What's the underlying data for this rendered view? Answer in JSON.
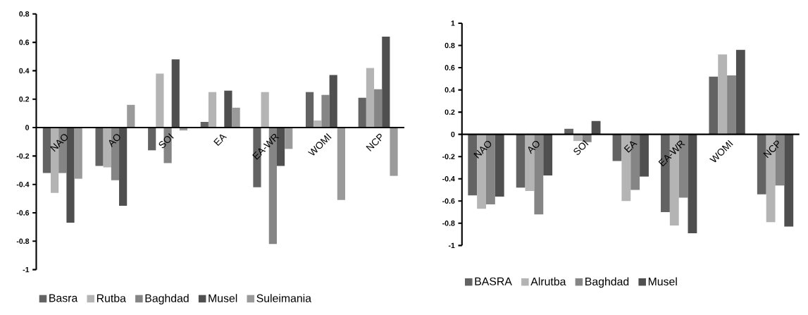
{
  "chart_data": [
    {
      "type": "bar",
      "categories": [
        "NAO",
        "AO",
        "SOI",
        "EA",
        "EA-WR",
        "WOMI",
        "NCP"
      ],
      "ylim": [
        -1,
        0.8
      ],
      "yticks": [
        -1,
        -0.8,
        -0.6,
        -0.4,
        -0.2,
        0,
        0.2,
        0.4,
        0.6,
        0.8
      ],
      "legend": "bottom",
      "grid": false,
      "series": [
        {
          "name": "Basra",
          "color": "#636363",
          "values": [
            -0.32,
            -0.27,
            -0.16,
            0.04,
            -0.42,
            0.25,
            0.21
          ]
        },
        {
          "name": "Rutba",
          "color": "#b4b4b4",
          "values": [
            -0.46,
            -0.28,
            0.38,
            0.25,
            0.25,
            0.05,
            0.42
          ]
        },
        {
          "name": "Baghdad",
          "color": "#858585",
          "values": [
            -0.32,
            -0.37,
            -0.25,
            null,
            -0.82,
            0.23,
            0.27
          ]
        },
        {
          "name": "Musel",
          "color": "#4f4f4f",
          "values": [
            -0.67,
            -0.55,
            0.48,
            0.26,
            -0.27,
            0.37,
            0.64
          ]
        },
        {
          "name": "Suleimania",
          "color": "#9a9a9a",
          "values": [
            -0.36,
            0.16,
            -0.02,
            0.14,
            -0.15,
            -0.51,
            -0.34
          ]
        }
      ]
    },
    {
      "type": "bar",
      "categories": [
        "NAO",
        "AO",
        "SOI",
        "EA",
        "EA-WR",
        "WOMI",
        "NCP"
      ],
      "ylim": [
        -1,
        1
      ],
      "yticks": [
        -1,
        -0.8,
        -0.6,
        -0.4,
        -0.2,
        0,
        0.2,
        0.4,
        0.6,
        0.8,
        1
      ],
      "legend": "bottom",
      "grid": false,
      "series": [
        {
          "name": "BASRA",
          "color": "#636363",
          "values": [
            -0.55,
            -0.48,
            0.05,
            -0.24,
            -0.7,
            0.52,
            -0.54
          ]
        },
        {
          "name": "Alrutba",
          "color": "#b4b4b4",
          "values": [
            -0.67,
            -0.51,
            -0.06,
            -0.6,
            -0.82,
            0.72,
            -0.79
          ]
        },
        {
          "name": "Baghdad",
          "color": "#858585",
          "values": [
            -0.63,
            -0.72,
            -0.07,
            -0.5,
            -0.57,
            0.53,
            -0.46
          ]
        },
        {
          "name": "Musel",
          "color": "#4f4f4f",
          "values": [
            -0.56,
            -0.37,
            0.12,
            -0.38,
            -0.89,
            0.76,
            -0.83
          ]
        }
      ]
    }
  ]
}
